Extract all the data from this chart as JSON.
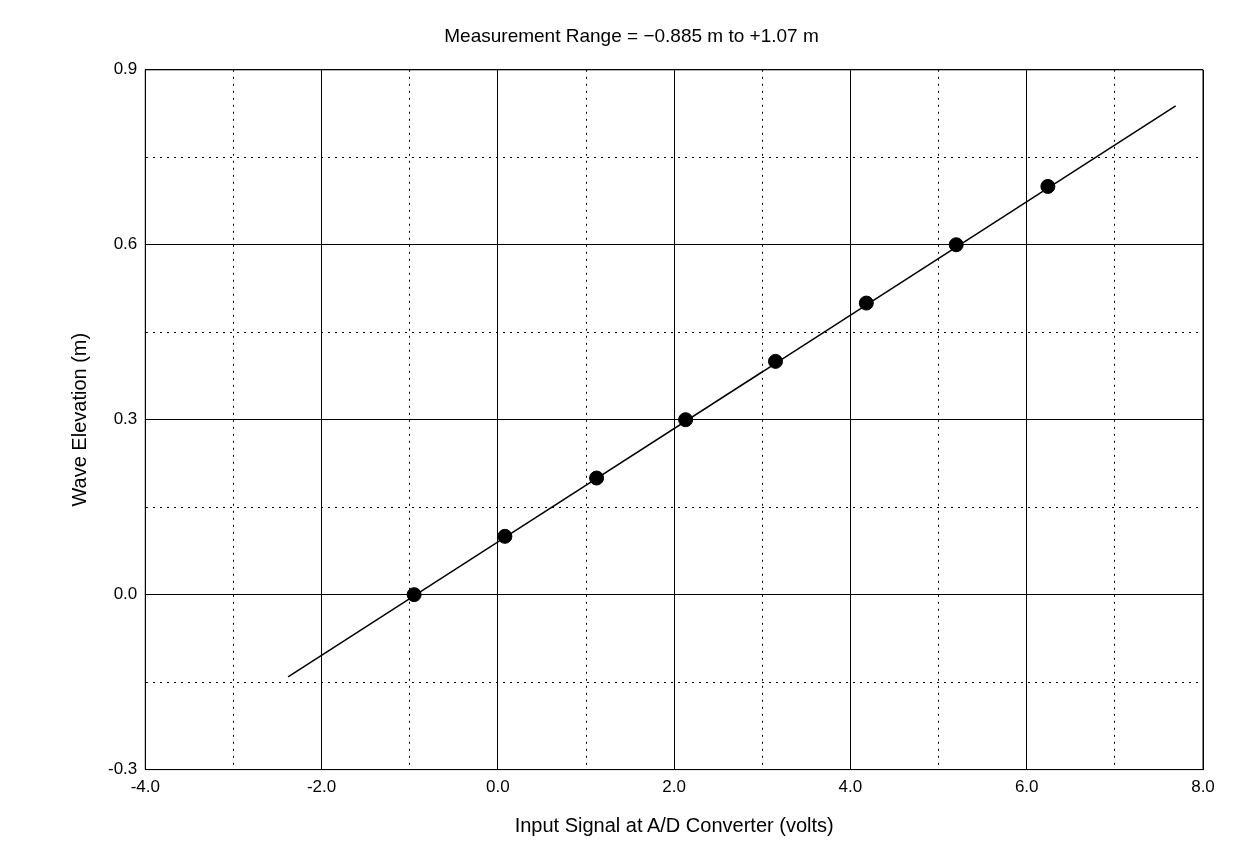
{
  "chart_data": {
    "type": "scatter",
    "title": "Measurement Range = −0.885 m to +1.07 m",
    "xlabel": "Input Signal at A/D Converter (volts)",
    "ylabel": "Wave Elevation (m)",
    "xlim": [
      -4,
      8
    ],
    "ylim": [
      -0.3,
      0.9
    ],
    "xticks": [
      {
        "value": -4,
        "label": "-4.0"
      },
      {
        "value": -3,
        "label": null
      },
      {
        "value": -2,
        "label": "-2.0"
      },
      {
        "value": -1,
        "label": null
      },
      {
        "value": 0,
        "label": "0.0"
      },
      {
        "value": 1,
        "label": null
      },
      {
        "value": 2,
        "label": "2.0"
      },
      {
        "value": 3,
        "label": null
      },
      {
        "value": 4,
        "label": "4.0"
      },
      {
        "value": 5,
        "label": null
      },
      {
        "value": 6,
        "label": "6.0"
      },
      {
        "value": 7,
        "label": null
      },
      {
        "value": 8,
        "label": "8.0"
      }
    ],
    "yticks": [
      {
        "value": -0.3,
        "label": "-0.3"
      },
      {
        "value": -0.15,
        "label": null
      },
      {
        "value": 0,
        "label": "0.0"
      },
      {
        "value": 0.15,
        "label": null
      },
      {
        "value": 0.3,
        "label": "0.3"
      },
      {
        "value": 0.45,
        "label": null
      },
      {
        "value": 0.6,
        "label": "0.6"
      },
      {
        "value": 0.75,
        "label": null
      },
      {
        "value": 0.9,
        "label": "0.9"
      }
    ],
    "grid": true,
    "legend": false,
    "series": [
      {
        "type": "scatter",
        "color": "#000000",
        "marker": "circle",
        "x": [
          -0.95,
          0.08,
          1.12,
          2.13,
          3.15,
          4.18,
          5.2,
          6.24
        ],
        "values": [
          0,
          0.1,
          0.2,
          0.3,
          0.4,
          0.5,
          0.6,
          0.7
        ]
      },
      {
        "type": "line",
        "color": "#000000",
        "marker": "none",
        "line_style": "solid",
        "x": [
          -2.38,
          7.69
        ],
        "values": [
          -0.141,
          0.838
        ]
      }
    ]
  }
}
